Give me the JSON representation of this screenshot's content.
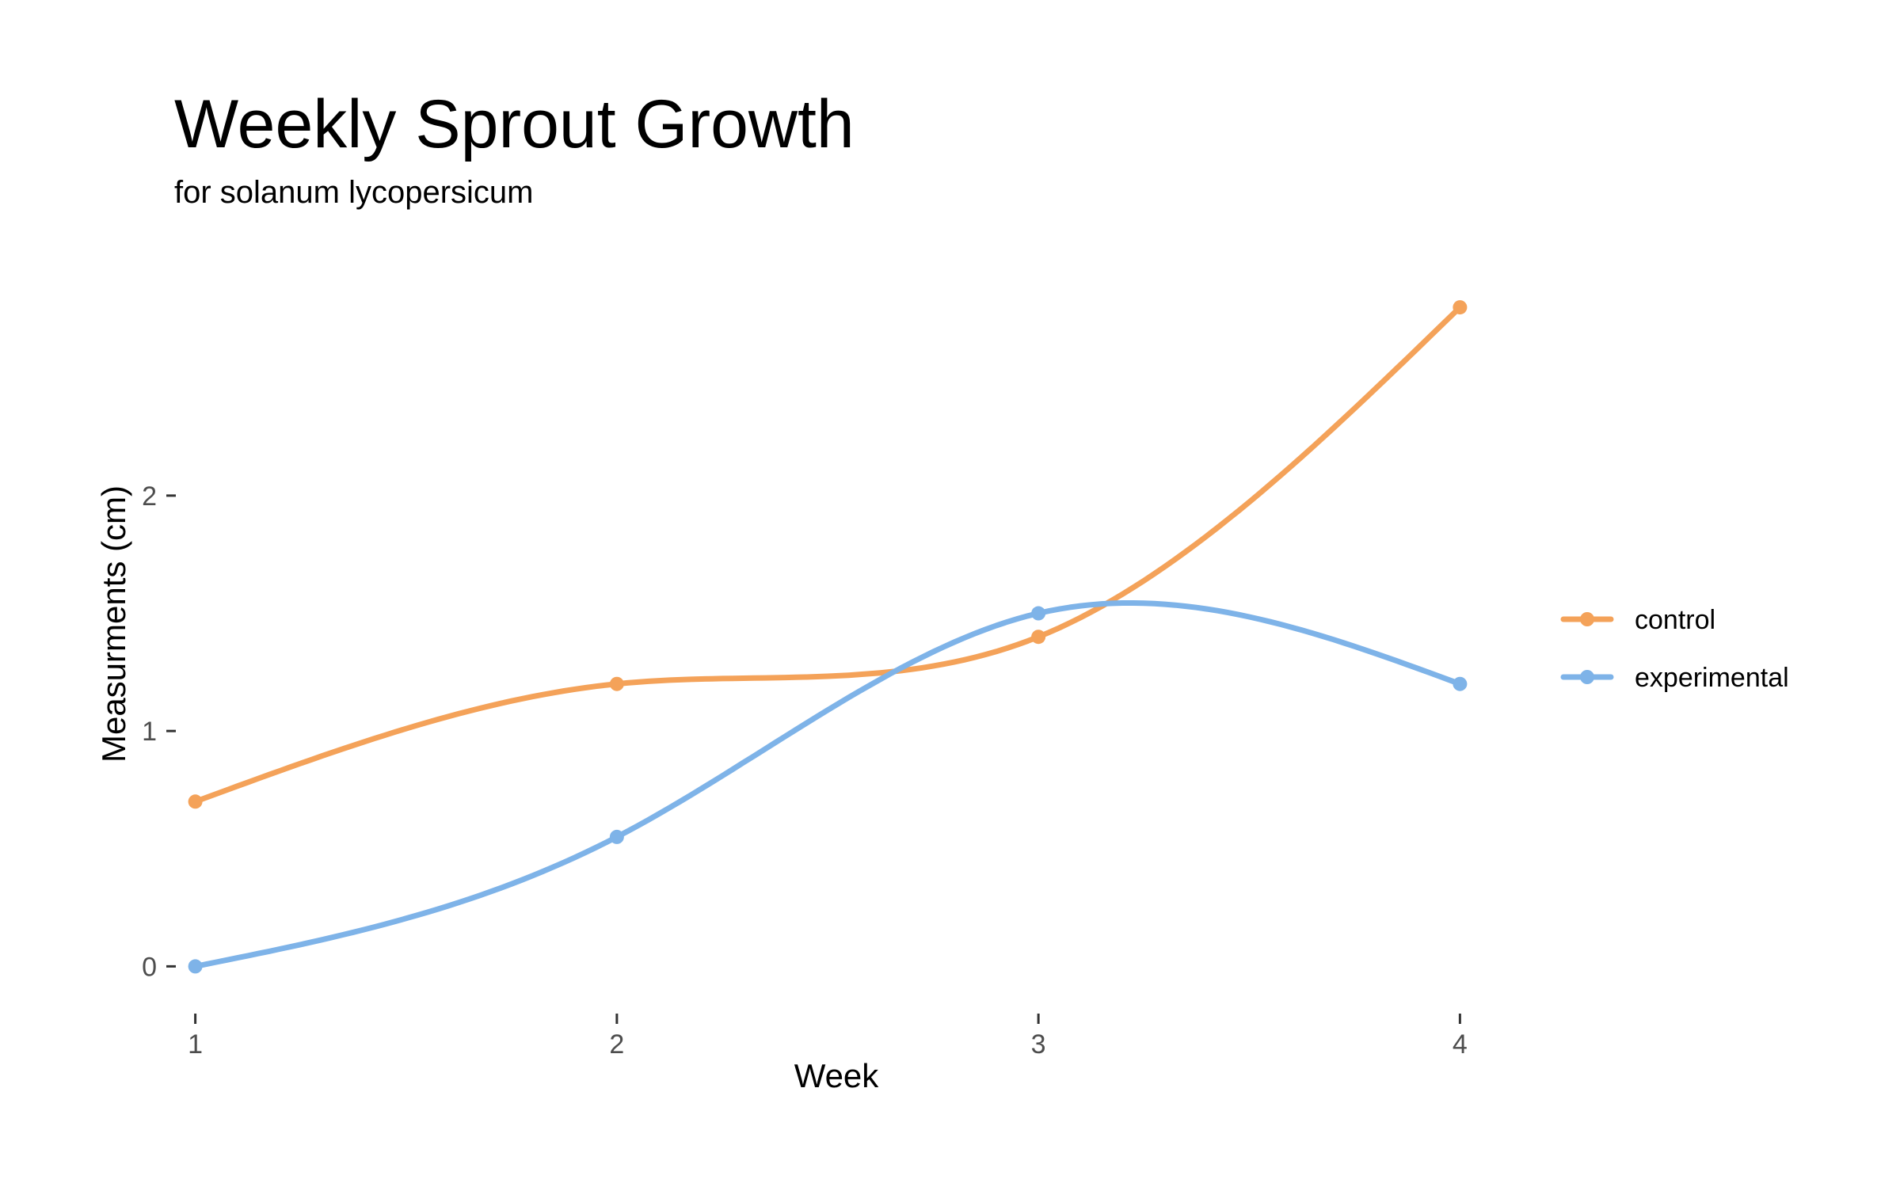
{
  "chart_data": {
    "type": "line",
    "title": "Weekly Sprout Growth",
    "subtitle": "for  solanum lycopersicum",
    "xlabel": "Week",
    "ylabel": "Measurments (cm)",
    "x": [
      1,
      2,
      3,
      4
    ],
    "x_ticks": [
      "1",
      "2",
      "3",
      "4"
    ],
    "y_ticks": [
      "0",
      "1",
      "2"
    ],
    "xlim": [
      0.95,
      4.05
    ],
    "ylim": [
      -0.14,
      3.13
    ],
    "smoothed": true,
    "grid": false,
    "legend_position": "right",
    "series": [
      {
        "name": "control",
        "values": [
          0.7,
          1.2,
          1.4,
          2.8
        ],
        "color": "#F4A259"
      },
      {
        "name": "experimental",
        "values": [
          0.0,
          0.55,
          1.5,
          1.2
        ],
        "color": "#7EB3E8"
      }
    ]
  }
}
